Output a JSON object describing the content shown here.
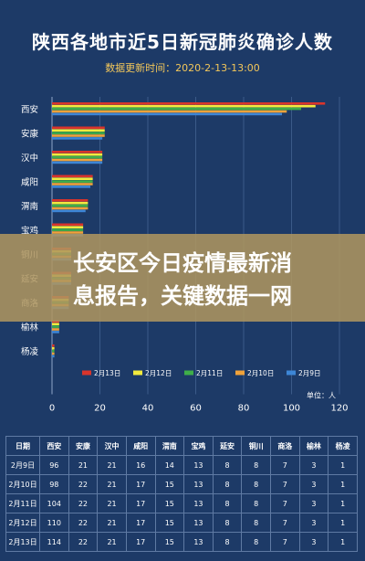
{
  "header": {
    "title": "陕西各地市近5日新冠肺炎确诊人数",
    "subtitle": "数据更新时间：2020-2-13-13:00"
  },
  "overlay": {
    "line1": "长安区今日疫情最新消",
    "line2": "息报告，关键数据一网"
  },
  "chart_data": {
    "type": "bar",
    "orientation": "horizontal",
    "categories": [
      "西安",
      "安康",
      "汉中",
      "咸阳",
      "渭南",
      "宝鸡",
      "铜川",
      "延安",
      "商洛",
      "榆林",
      "杨凌"
    ],
    "series": [
      {
        "name": "2月13日",
        "color": "#d9342b",
        "values": [
          114,
          22,
          21,
          17,
          15,
          13,
          8,
          8,
          7,
          3,
          1
        ]
      },
      {
        "name": "2月12日",
        "color": "#f2ea3e",
        "values": [
          110,
          22,
          21,
          17,
          15,
          13,
          8,
          8,
          7,
          3,
          1
        ]
      },
      {
        "name": "2月11日",
        "color": "#3fae49",
        "values": [
          104,
          22,
          21,
          17,
          15,
          13,
          8,
          8,
          7,
          3,
          1
        ]
      },
      {
        "name": "2月10日",
        "color": "#f0a23a",
        "values": [
          98,
          22,
          21,
          17,
          15,
          13,
          8,
          8,
          7,
          3,
          1
        ]
      },
      {
        "name": "2月9日",
        "color": "#3d86d6",
        "values": [
          96,
          21,
          21,
          16,
          14,
          13,
          8,
          8,
          7,
          3,
          1
        ]
      }
    ],
    "xlim": [
      0,
      120
    ],
    "xticks": [
      0,
      20,
      40,
      60,
      80,
      100,
      120
    ],
    "unit_label": "单位：人",
    "legend_position": "bottom"
  },
  "table": {
    "headers": [
      "日期",
      "西安",
      "安康",
      "汉中",
      "咸阳",
      "渭南",
      "宝鸡",
      "延安",
      "铜川",
      "商洛",
      "榆林",
      "杨凌"
    ],
    "rows": [
      [
        "2月9日",
        "96",
        "21",
        "21",
        "16",
        "14",
        "13",
        "8",
        "8",
        "7",
        "3",
        "1"
      ],
      [
        "2月10日",
        "98",
        "22",
        "21",
        "17",
        "15",
        "13",
        "8",
        "8",
        "7",
        "3",
        "1"
      ],
      [
        "2月11日",
        "104",
        "22",
        "21",
        "17",
        "15",
        "13",
        "8",
        "8",
        "7",
        "3",
        "1"
      ],
      [
        "2月12日",
        "110",
        "22",
        "21",
        "17",
        "15",
        "13",
        "8",
        "8",
        "7",
        "3",
        "1"
      ],
      [
        "2月13日",
        "114",
        "22",
        "21",
        "17",
        "15",
        "13",
        "8",
        "8",
        "7",
        "3",
        "1"
      ]
    ]
  }
}
